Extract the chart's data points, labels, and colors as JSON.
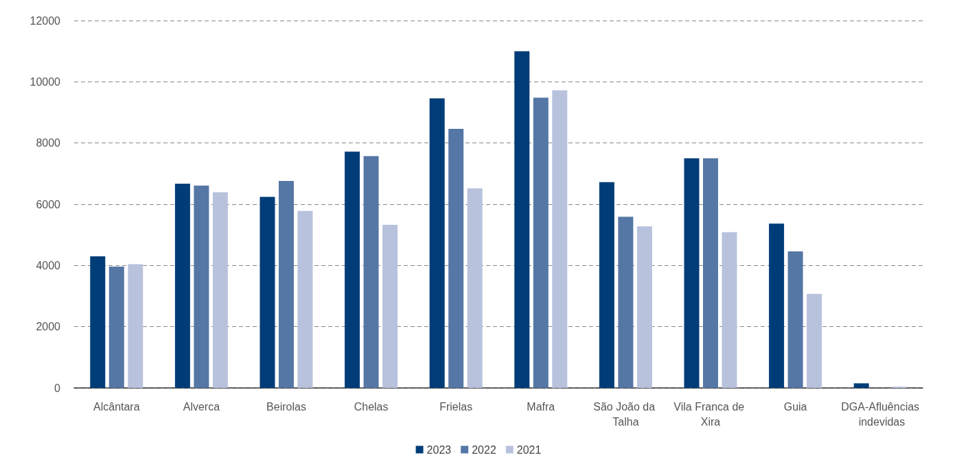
{
  "chart_data": {
    "type": "bar",
    "categories": [
      "Alcântara",
      "Alverca",
      "Beirolas",
      "Chelas",
      "Frielas",
      "Mafra",
      "São João da Talha",
      "Vila Franca de Xira",
      "Guia",
      "DGA-Afluências indevidas"
    ],
    "series": [
      {
        "name": "2023",
        "color": "#003d78",
        "values": [
          4300,
          6670,
          6240,
          7720,
          9460,
          11000,
          6720,
          7500,
          5370,
          150
        ]
      },
      {
        "name": "2022",
        "color": "#5577a5",
        "values": [
          3960,
          6610,
          6760,
          7570,
          8460,
          9480,
          5590,
          7500,
          4460,
          0
        ]
      },
      {
        "name": "2021",
        "color": "#b8c2dc",
        "values": [
          4040,
          6390,
          5780,
          5330,
          6520,
          9720,
          5280,
          5090,
          3070,
          40
        ]
      }
    ],
    "ylim": [
      0,
      12000
    ],
    "yticks": [
      0,
      2000,
      4000,
      6000,
      8000,
      10000,
      12000
    ],
    "grid": "y",
    "legend": "bottom"
  }
}
